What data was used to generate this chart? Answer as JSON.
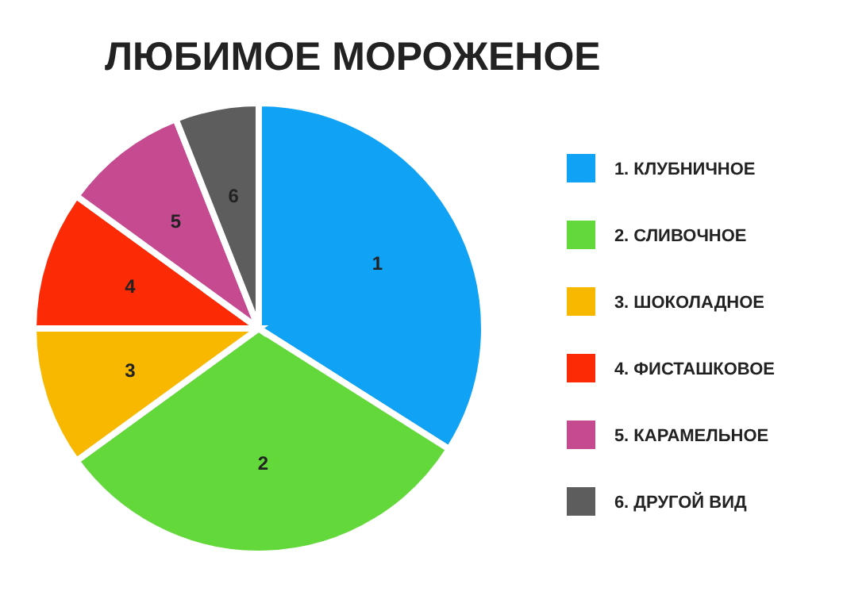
{
  "chart_data": {
    "type": "pie",
    "title": "ЛЮБИМОЕ МОРОЖЕНОЕ",
    "categories": [
      "1. КЛУБНИЧНОЕ",
      "2. СЛИВОЧНОЕ",
      "3. ШОКОЛАДНОЕ",
      "4. ФИСТАШКОВОЕ",
      "5. КАРАМЕЛЬНОЕ",
      "6. ДРУГОЙ ВИД"
    ],
    "values": [
      34,
      31,
      10,
      10,
      9,
      6
    ],
    "colors": [
      "#10a2f5",
      "#62d83a",
      "#f8b800",
      "#fd2a06",
      "#c54a90",
      "#5d5d5d"
    ],
    "annotations": [
      {
        "text": "1",
        "x": "1. КЛУБНИЧНОЕ"
      },
      {
        "text": "2",
        "x": "2. СЛИВОЧНОЕ"
      },
      {
        "text": "3",
        "x": "3. ШОКОЛАДНОЕ"
      },
      {
        "text": "4",
        "x": "4. ФИСТАШКОВОЕ"
      },
      {
        "text": "5",
        "x": "5. КАРАМЕЛЬНОЕ"
      },
      {
        "text": "6",
        "x": "6. ДРУГОЙ ВИД"
      }
    ],
    "legend": "right"
  }
}
